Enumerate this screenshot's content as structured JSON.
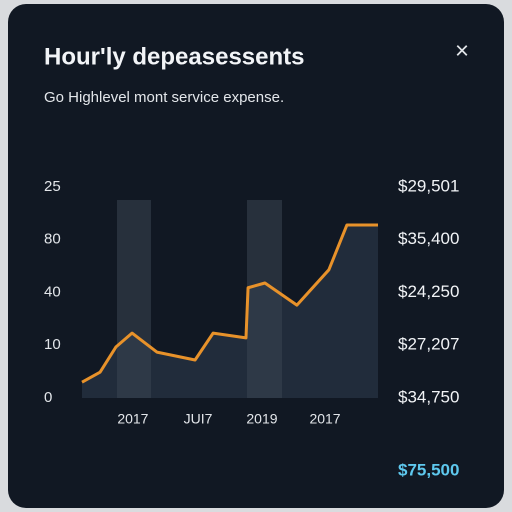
{
  "chart_data": {
    "type": "line",
    "title": "Hour'ly depeasessents",
    "subtitle": "Go Highlevel mont service expense.",
    "close": "×",
    "x": [
      0,
      6.1,
      11.5,
      16.9,
      25.3,
      38.2,
      44.3,
      55.4,
      56.1,
      61.8,
      72.6,
      83.4,
      89.5,
      100
    ],
    "series": [
      {
        "color": "#e8922a",
        "values": [
          0.3,
          0.49,
          0.97,
          1.23,
          0.87,
          0.72,
          1.23,
          1.14,
          2.09,
          2.18,
          1.76,
          2.43,
          3.28,
          3.28
        ]
      }
    ],
    "xlim": [
      0,
      100
    ],
    "xticks": [
      {
        "value": 17.2,
        "label": "2017"
      },
      {
        "value": 39.2,
        "label": "JUI7"
      },
      {
        "value": 60.8,
        "label": "2019"
      },
      {
        "value": 82.1,
        "label": "2017"
      }
    ],
    "ylim": [
      0,
      4
    ],
    "yticks": [
      {
        "value": 0,
        "label": "0"
      },
      {
        "value": 1,
        "label": "10"
      },
      {
        "value": 2,
        "label": "40"
      },
      {
        "value": 3,
        "label": "80"
      },
      {
        "value": 4,
        "label": "25"
      }
    ],
    "y2lim": [
      0,
      4
    ],
    "y2ticks": [
      {
        "value": 0,
        "label": "$34,750"
      },
      {
        "value": 1,
        "label": "$27,207"
      },
      {
        "value": 2,
        "label": "$24,250"
      },
      {
        "value": 3,
        "label": "$35,400"
      },
      {
        "value": 4,
        "label": "$29,501"
      }
    ],
    "total": "$75,500"
  }
}
